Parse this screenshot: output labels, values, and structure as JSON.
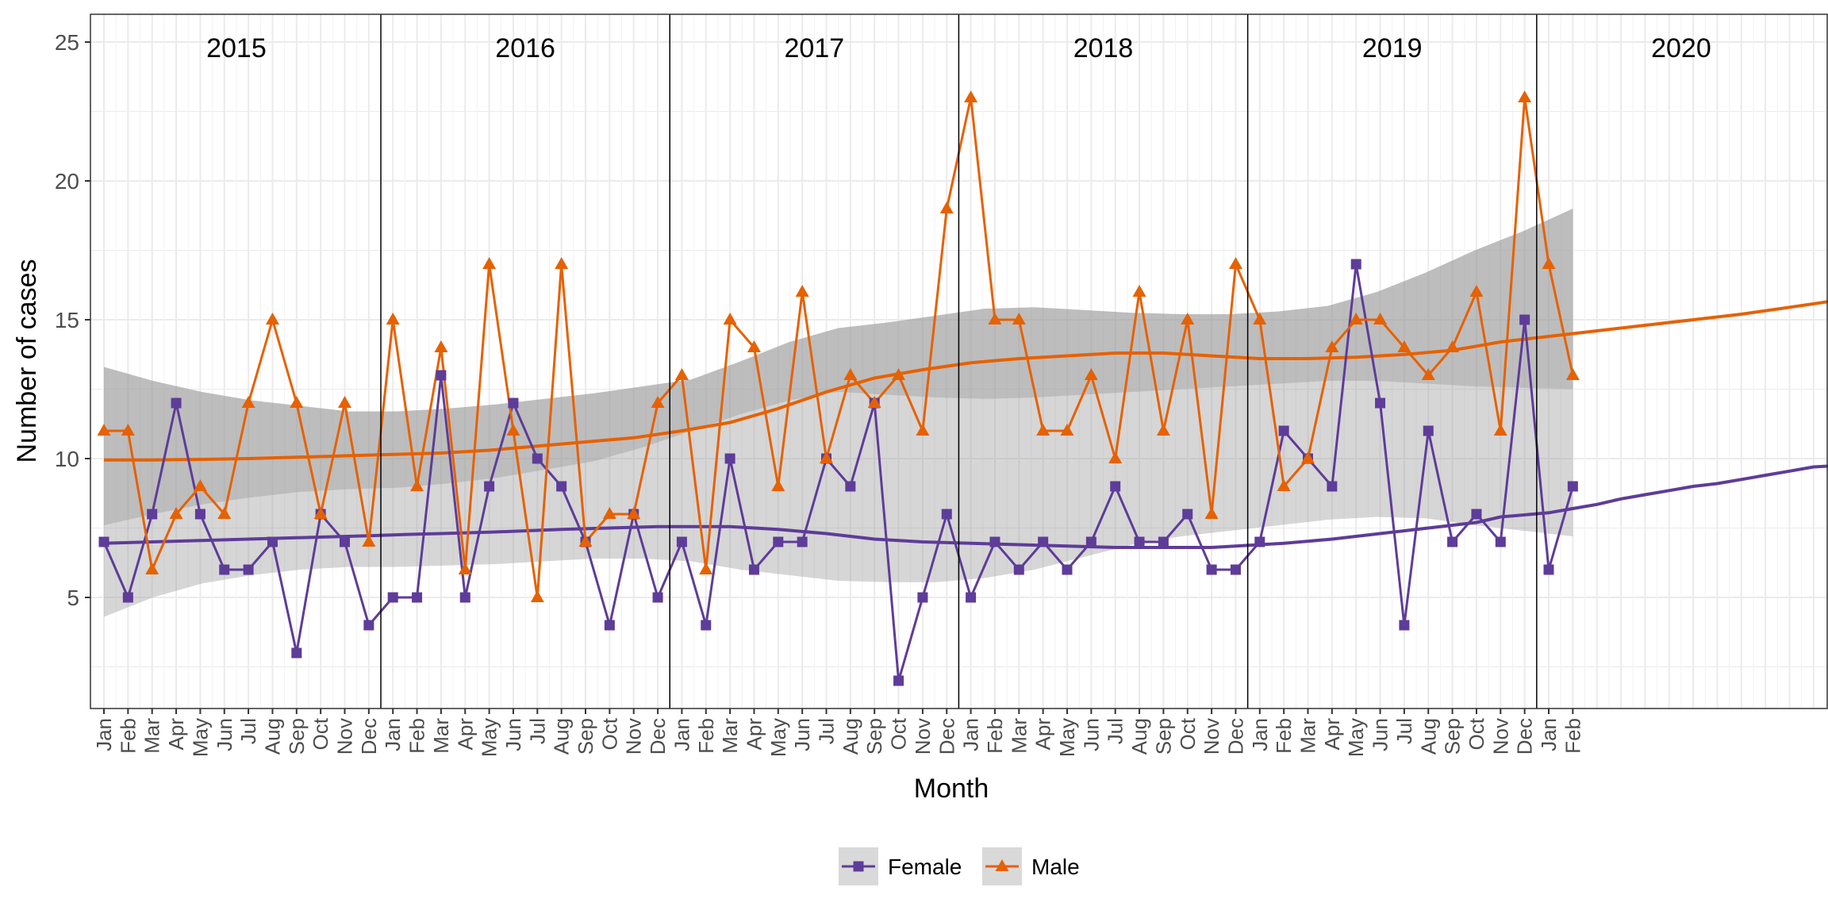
{
  "chart_data": {
    "type": "line",
    "xlabel": "Month",
    "ylabel": "Number of cases",
    "ylim": [
      1,
      26
    ],
    "yticks": [
      5,
      10,
      15,
      20,
      25
    ],
    "grid": true,
    "legend_position": "bottom",
    "years": [
      "2015",
      "2016",
      "2017",
      "2018",
      "2019",
      "2020"
    ],
    "months": [
      "Jan",
      "Feb",
      "Mar",
      "Apr",
      "May",
      "Jun",
      "Jul",
      "Aug",
      "Sep",
      "Oct",
      "Nov",
      "Dec"
    ],
    "last_year_months": 2,
    "series": [
      {
        "name": "Female",
        "color": "#5E3C99",
        "marker": "square",
        "values": [
          7,
          5,
          8,
          12,
          8,
          6,
          6,
          7,
          3,
          8,
          7,
          4,
          5,
          5,
          13,
          5,
          9,
          12,
          10,
          9,
          7,
          4,
          8,
          5,
          7,
          4,
          10,
          6,
          7,
          7,
          10,
          9,
          12,
          2,
          5,
          8,
          5,
          7,
          6,
          7,
          6,
          7,
          9,
          7,
          7,
          8,
          6,
          6,
          7,
          11,
          10,
          9,
          17,
          12,
          4,
          11,
          7,
          8,
          7,
          15,
          6,
          9
        ],
        "trend": [
          6.95,
          7.0,
          7.05,
          7.1,
          7.15,
          7.22,
          7.28,
          7.3,
          7.35,
          7.45,
          7.5,
          7.55,
          7.55,
          7.55,
          7.45,
          7.3,
          7.1,
          7.0,
          6.95,
          6.9,
          6.85,
          6.8,
          6.8,
          6.8,
          6.85,
          6.95,
          7.1,
          7.3,
          7.5,
          7.7,
          7.9,
          8.05,
          8.2,
          8.35,
          8.55,
          8.7,
          8.85,
          9.0,
          9.1,
          9.25,
          9.4,
          9.55,
          9.7,
          9.75
        ],
        "trend_x": [
          0,
          2,
          4,
          6,
          8,
          11,
          13,
          14,
          16,
          19,
          21,
          23,
          25,
          26,
          28,
          30,
          32,
          34,
          36,
          38,
          40,
          42,
          44,
          46,
          47,
          49,
          51,
          53,
          55,
          57,
          58,
          60,
          61,
          62,
          63,
          64,
          65,
          66,
          67,
          68,
          69,
          70,
          71,
          72
        ],
        "ci_upper": [
          13.3,
          12.8,
          12.4,
          12.1,
          11.9,
          11.7,
          11.7,
          11.8,
          11.95,
          12.15,
          12.35,
          12.6,
          12.85,
          13.5,
          14.2,
          14.7,
          14.9,
          15.15,
          15.4,
          15.45,
          15.35,
          15.25,
          15.2,
          15.2,
          15.3,
          15.5,
          16.0,
          16.7,
          17.5,
          18.2,
          19.0
        ],
        "ci_lower": [
          4.3,
          5.0,
          5.5,
          5.8,
          6.0,
          6.1,
          6.1,
          6.15,
          6.2,
          6.3,
          6.4,
          6.4,
          6.3,
          6.0,
          5.8,
          5.6,
          5.55,
          5.55,
          5.7,
          6.0,
          6.45,
          6.9,
          7.2,
          7.4,
          7.6,
          7.8,
          7.9,
          7.85,
          7.6,
          7.4,
          7.2
        ]
      },
      {
        "name": "Male",
        "color": "#E66101",
        "marker": "triangle",
        "values": [
          11,
          11,
          6,
          8,
          9,
          8,
          12,
          15,
          12,
          8,
          12,
          7,
          15,
          9,
          14,
          6,
          17,
          11,
          5,
          17,
          7,
          8,
          8,
          12,
          13,
          6,
          15,
          14,
          9,
          16,
          10,
          13,
          12,
          13,
          11,
          19,
          23,
          15,
          15,
          11,
          11,
          13,
          10,
          16,
          11,
          15,
          8,
          17,
          15,
          9,
          10,
          14,
          15,
          15,
          14,
          13,
          14,
          16,
          11,
          23,
          17,
          13
        ],
        "trend": [
          9.95,
          9.95,
          9.97,
          10.0,
          10.05,
          10.1,
          10.15,
          10.2,
          10.3,
          10.45,
          10.6,
          10.75,
          11.0,
          11.3,
          11.8,
          12.4,
          12.9,
          13.2,
          13.45,
          13.6,
          13.7,
          13.8,
          13.8,
          13.7,
          13.6,
          13.6,
          13.65,
          13.75,
          13.9,
          14.05,
          14.2,
          14.4,
          14.6,
          14.8,
          15.0,
          15.2,
          15.45,
          15.7
        ],
        "trend_x": [
          0,
          2,
          4,
          6,
          8,
          10,
          12,
          14,
          16,
          18,
          20,
          22,
          24,
          26,
          28,
          30,
          32,
          34,
          36,
          38,
          40,
          42,
          44,
          46,
          48,
          50,
          52,
          54,
          56,
          57,
          58,
          60,
          62,
          64,
          66,
          68,
          70,
          72
        ],
        "ci_upper": [
          13.3,
          12.8,
          12.4,
          12.1,
          11.9,
          11.7,
          11.7,
          11.8,
          11.95,
          12.15,
          12.35,
          12.6,
          12.85,
          13.5,
          14.2,
          14.7,
          14.9,
          15.15,
          15.4,
          15.45,
          15.35,
          15.25,
          15.2,
          15.2,
          15.3,
          15.5,
          16.0,
          16.7,
          17.5,
          18.2,
          19.0
        ],
        "ci_lower": [
          7.6,
          8.0,
          8.35,
          8.6,
          8.8,
          8.9,
          8.95,
          9.1,
          9.3,
          9.6,
          9.9,
          10.4,
          11.0,
          11.6,
          12.1,
          12.4,
          12.3,
          12.2,
          12.15,
          12.2,
          12.3,
          12.4,
          12.5,
          12.6,
          12.7,
          12.8,
          12.8,
          12.7,
          12.6,
          12.55,
          12.5
        ]
      }
    ]
  }
}
